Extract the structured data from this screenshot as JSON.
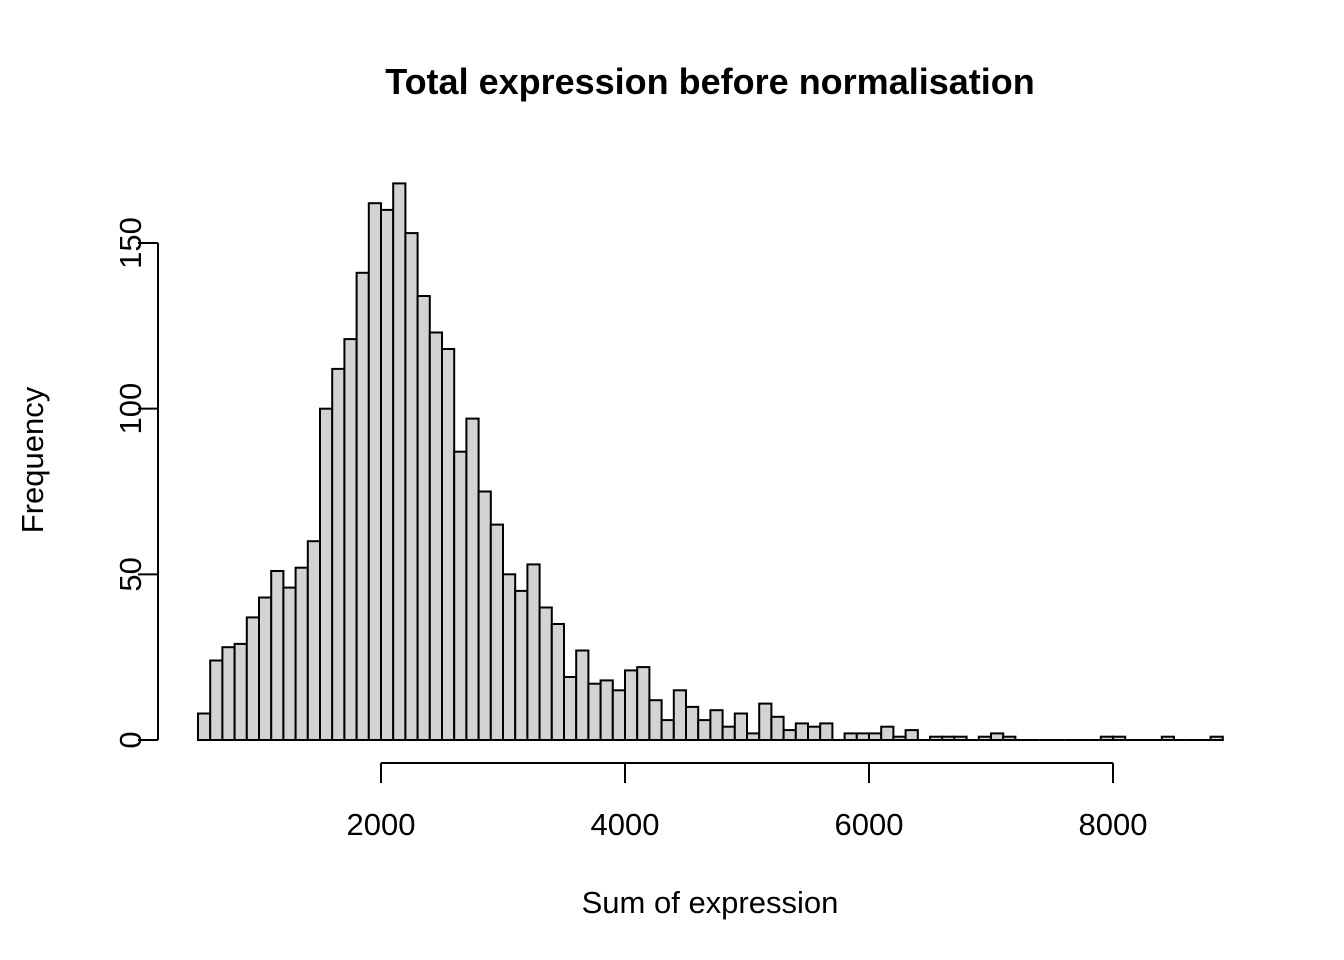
{
  "title": "Total expression before normalisation",
  "x_axis": {
    "label": "Sum of expression",
    "tick_labels": [
      "2000",
      "4000",
      "6000",
      "8000"
    ],
    "tick_values": [
      2000,
      4000,
      6000,
      8000
    ]
  },
  "y_axis": {
    "label": "Frequency",
    "tick_labels": [
      "0",
      "50",
      "100",
      "150"
    ],
    "tick_values": [
      0,
      50,
      100,
      150
    ]
  },
  "colors": {
    "bar_fill": "#d3d3d3",
    "bar_stroke": "#000000",
    "axis_stroke": "#000000",
    "background": "#ffffff"
  },
  "chart_data": {
    "type": "bar",
    "subtype": "histogram",
    "title": "Total expression before normalisation",
    "xlabel": "Sum of expression",
    "ylabel": "Frequency",
    "bin_start": 500,
    "bin_width": 100,
    "bin_edges_range": [
      500,
      8900
    ],
    "xlim": [
      500,
      8900
    ],
    "ylim": [
      0,
      168
    ],
    "x_ticks": [
      2000,
      4000,
      6000,
      8000
    ],
    "y_ticks": [
      0,
      50,
      100,
      150
    ],
    "grid": false,
    "legend": "none",
    "counts": [
      8,
      24,
      28,
      29,
      37,
      43,
      51,
      46,
      52,
      60,
      100,
      112,
      121,
      141,
      162,
      160,
      168,
      153,
      134,
      123,
      118,
      87,
      97,
      75,
      65,
      50,
      45,
      53,
      40,
      35,
      19,
      27,
      17,
      18,
      15,
      21,
      22,
      12,
      6,
      15,
      10,
      6,
      9,
      4,
      8,
      2,
      11,
      7,
      3,
      5,
      4,
      5,
      0,
      2,
      2,
      2,
      4,
      1,
      3,
      0,
      1,
      1,
      1,
      0,
      1,
      2,
      1,
      0,
      0,
      0,
      0,
      0,
      0,
      0,
      1,
      1,
      0,
      0,
      0,
      1,
      0,
      0,
      0,
      1
    ]
  }
}
